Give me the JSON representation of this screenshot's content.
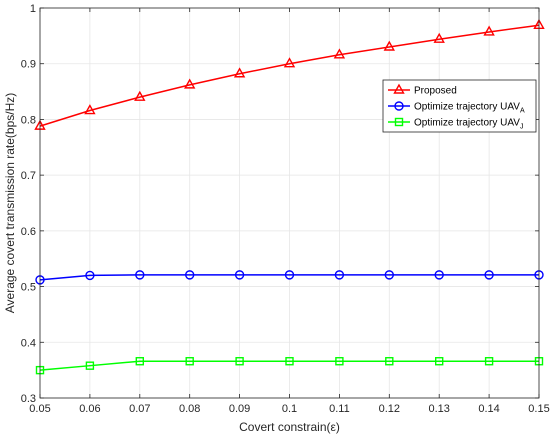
{
  "chart_data": {
    "type": "line",
    "xlabel": "Covert constrain(ε)",
    "ylabel": "Average covert transmission rate(bps/Hz)",
    "xlim": [
      0.05,
      0.15
    ],
    "ylim": [
      0.3,
      1.0
    ],
    "x": [
      0.05,
      0.06,
      0.07,
      0.08,
      0.09,
      0.1,
      0.11,
      0.12,
      0.13,
      0.14,
      0.15
    ],
    "x_tick_labels": [
      "0.05",
      "0.06",
      "0.07",
      "0.08",
      "0.09",
      "0.1",
      "0.11",
      "0.12",
      "0.13",
      "0.14",
      "0.15"
    ],
    "y_ticks": [
      0.3,
      0.4,
      0.5,
      0.6,
      0.7,
      0.8,
      0.9,
      1.0
    ],
    "y_tick_labels": [
      "0.3",
      "0.4",
      "0.5",
      "0.6",
      "0.7",
      "0.8",
      "0.9",
      "1"
    ],
    "grid": true,
    "legend_position": "top-right",
    "series": [
      {
        "name": "Proposed",
        "legend_main": "Proposed",
        "legend_sub": "",
        "color": "#ff0000",
        "marker": "triangle",
        "values": [
          0.788,
          0.816,
          0.84,
          0.862,
          0.882,
          0.9,
          0.916,
          0.93,
          0.944,
          0.957,
          0.969
        ]
      },
      {
        "name": "Optimize trajectory UAV_A",
        "legend_main": "Optimize trajectory UAV",
        "legend_sub": "A",
        "color": "#0000ff",
        "marker": "circle",
        "values": [
          0.512,
          0.52,
          0.521,
          0.521,
          0.521,
          0.521,
          0.521,
          0.521,
          0.521,
          0.521,
          0.521
        ]
      },
      {
        "name": "Optimize trajectory UAV_J",
        "legend_main": "Optimize trajectory UAV",
        "legend_sub": "J",
        "color": "#00ff00",
        "marker": "square",
        "values": [
          0.35,
          0.358,
          0.366,
          0.366,
          0.366,
          0.366,
          0.366,
          0.366,
          0.366,
          0.366,
          0.366
        ]
      }
    ]
  }
}
